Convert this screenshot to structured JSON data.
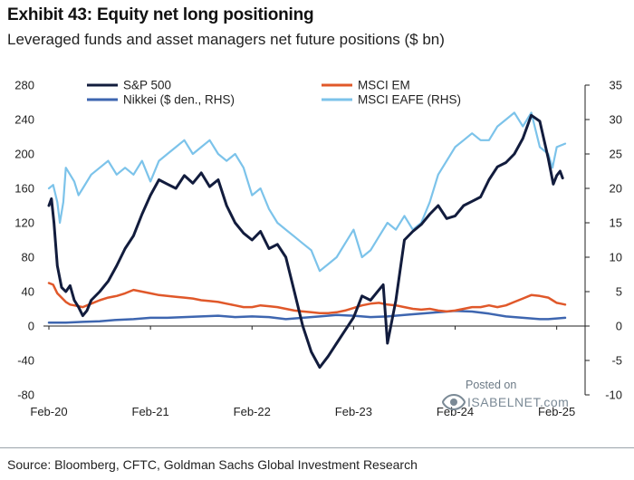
{
  "title": "Exhibit 43: Equity net long positioning",
  "subtitle": "Leveraged funds and asset managers net future positions ($ bn)",
  "source": "Source: Bloomberg, CFTC, Goldman Sachs Global Investment Research",
  "watermark": {
    "posted_on": "Posted on",
    "brand": "ISABELNET.com"
  },
  "chart_data": {
    "type": "line",
    "x_labels": [
      "Feb-20",
      "Feb-21",
      "Feb-22",
      "Feb-23",
      "Feb-24",
      "Feb-25"
    ],
    "x_range": [
      0,
      61
    ],
    "left_axis": {
      "ylim": [
        -80,
        280
      ],
      "ticks": [
        -80,
        -40,
        0,
        40,
        80,
        120,
        160,
        200,
        240,
        280
      ]
    },
    "right_axis": {
      "ylim": [
        -10,
        35
      ],
      "ticks": [
        -10,
        -5,
        0,
        5,
        10,
        15,
        20,
        25,
        30,
        35
      ]
    },
    "series": [
      {
        "name": "S&P 500",
        "axis": "left",
        "color": "#121c3d",
        "points": [
          [
            0,
            140
          ],
          [
            0.3,
            148
          ],
          [
            0.6,
            120
          ],
          [
            1,
            70
          ],
          [
            1.5,
            45
          ],
          [
            2,
            40
          ],
          [
            2.5,
            47
          ],
          [
            3,
            30
          ],
          [
            3.5,
            22
          ],
          [
            4,
            12
          ],
          [
            4.5,
            18
          ],
          [
            5,
            30
          ],
          [
            6,
            40
          ],
          [
            7,
            52
          ],
          [
            8,
            70
          ],
          [
            9,
            90
          ],
          [
            10,
            105
          ],
          [
            11,
            130
          ],
          [
            12,
            152
          ],
          [
            13,
            170
          ],
          [
            14,
            165
          ],
          [
            15,
            160
          ],
          [
            16,
            175
          ],
          [
            17,
            166
          ],
          [
            18,
            178
          ],
          [
            19,
            162
          ],
          [
            20,
            170
          ],
          [
            21,
            140
          ],
          [
            22,
            120
          ],
          [
            23,
            108
          ],
          [
            24,
            100
          ],
          [
            25,
            110
          ],
          [
            26,
            90
          ],
          [
            27,
            95
          ],
          [
            28,
            80
          ],
          [
            29,
            40
          ],
          [
            30,
            0
          ],
          [
            31,
            -30
          ],
          [
            32,
            -48
          ],
          [
            33,
            -35
          ],
          [
            34,
            -20
          ],
          [
            35,
            -5
          ],
          [
            36,
            10
          ],
          [
            37,
            35
          ],
          [
            38,
            30
          ],
          [
            39,
            42
          ],
          [
            39.5,
            48
          ],
          [
            40,
            -20
          ],
          [
            40.3,
            -5
          ],
          [
            41,
            30
          ],
          [
            42,
            100
          ],
          [
            43,
            110
          ],
          [
            44,
            118
          ],
          [
            45,
            130
          ],
          [
            46,
            140
          ],
          [
            47,
            125
          ],
          [
            48,
            128
          ],
          [
            49,
            140
          ],
          [
            50,
            145
          ],
          [
            51,
            150
          ],
          [
            52,
            170
          ],
          [
            53,
            185
          ],
          [
            54,
            190
          ],
          [
            55,
            200
          ],
          [
            56,
            218
          ],
          [
            57,
            245
          ],
          [
            58,
            238
          ],
          [
            59,
            195
          ],
          [
            59.6,
            165
          ],
          [
            60,
            175
          ],
          [
            60.4,
            180
          ],
          [
            60.7,
            172
          ]
        ]
      },
      {
        "name": "MSCI EM",
        "axis": "left",
        "color": "#e0582a",
        "points": [
          [
            0,
            50
          ],
          [
            0.5,
            48
          ],
          [
            1,
            38
          ],
          [
            1.5,
            33
          ],
          [
            2,
            28
          ],
          [
            2.5,
            25
          ],
          [
            3,
            24
          ],
          [
            4,
            22
          ],
          [
            5,
            26
          ],
          [
            6,
            30
          ],
          [
            7,
            33
          ],
          [
            8,
            35
          ],
          [
            9,
            38
          ],
          [
            10,
            42
          ],
          [
            11,
            40
          ],
          [
            12,
            38
          ],
          [
            13,
            36
          ],
          [
            14,
            35
          ],
          [
            15,
            34
          ],
          [
            16,
            33
          ],
          [
            17,
            32
          ],
          [
            18,
            30
          ],
          [
            19,
            29
          ],
          [
            20,
            28
          ],
          [
            21,
            26
          ],
          [
            22,
            24
          ],
          [
            23,
            22
          ],
          [
            24,
            22
          ],
          [
            25,
            24
          ],
          [
            26,
            23
          ],
          [
            27,
            22
          ],
          [
            28,
            20
          ],
          [
            29,
            18
          ],
          [
            30,
            17
          ],
          [
            31,
            16
          ],
          [
            32,
            15
          ],
          [
            33,
            15
          ],
          [
            34,
            16
          ],
          [
            35,
            18
          ],
          [
            36,
            21
          ],
          [
            37,
            24
          ],
          [
            38,
            26
          ],
          [
            39,
            27
          ],
          [
            40,
            25
          ],
          [
            41,
            24
          ],
          [
            42,
            22
          ],
          [
            43,
            20
          ],
          [
            44,
            19
          ],
          [
            45,
            20
          ],
          [
            46,
            18
          ],
          [
            47,
            17
          ],
          [
            48,
            18
          ],
          [
            49,
            20
          ],
          [
            50,
            22
          ],
          [
            51,
            22
          ],
          [
            52,
            24
          ],
          [
            53,
            22
          ],
          [
            54,
            24
          ],
          [
            55,
            28
          ],
          [
            56,
            32
          ],
          [
            57,
            36
          ],
          [
            58,
            35
          ],
          [
            59,
            33
          ],
          [
            59.5,
            30
          ],
          [
            60,
            27
          ],
          [
            60.5,
            26
          ],
          [
            61,
            25
          ]
        ]
      },
      {
        "name": "Nikkei ($ den., RHS)",
        "axis": "right",
        "color": "#3e66b0",
        "points": [
          [
            0,
            0.5
          ],
          [
            2,
            0.5
          ],
          [
            4,
            0.6
          ],
          [
            6,
            0.7
          ],
          [
            8,
            0.9
          ],
          [
            10,
            1.0
          ],
          [
            12,
            1.2
          ],
          [
            14,
            1.2
          ],
          [
            16,
            1.3
          ],
          [
            18,
            1.4
          ],
          [
            20,
            1.5
          ],
          [
            22,
            1.3
          ],
          [
            24,
            1.4
          ],
          [
            26,
            1.3
          ],
          [
            28,
            1.0
          ],
          [
            30,
            1.2
          ],
          [
            32,
            1.4
          ],
          [
            34,
            1.6
          ],
          [
            36,
            1.5
          ],
          [
            38,
            1.3
          ],
          [
            40,
            1.4
          ],
          [
            42,
            1.6
          ],
          [
            44,
            1.8
          ],
          [
            46,
            2.0
          ],
          [
            48,
            2.2
          ],
          [
            50,
            2.1
          ],
          [
            52,
            1.8
          ],
          [
            54,
            1.4
          ],
          [
            56,
            1.2
          ],
          [
            58,
            1.0
          ],
          [
            59,
            1.0
          ],
          [
            60,
            1.1
          ],
          [
            61,
            1.2
          ]
        ]
      },
      {
        "name": "MSCI EAFE (RHS)",
        "axis": "right",
        "color": "#7cc3ea",
        "points": [
          [
            0,
            20
          ],
          [
            0.5,
            20.5
          ],
          [
            1,
            18
          ],
          [
            1.3,
            15
          ],
          [
            1.7,
            18
          ],
          [
            2,
            23
          ],
          [
            2.5,
            22
          ],
          [
            3,
            21
          ],
          [
            3.5,
            19
          ],
          [
            4,
            20
          ],
          [
            5,
            22
          ],
          [
            6,
            23
          ],
          [
            7,
            24
          ],
          [
            8,
            22
          ],
          [
            9,
            23
          ],
          [
            10,
            22
          ],
          [
            11,
            24
          ],
          [
            12,
            21
          ],
          [
            13,
            24
          ],
          [
            14,
            25
          ],
          [
            15,
            26
          ],
          [
            16,
            27
          ],
          [
            17,
            25
          ],
          [
            18,
            26
          ],
          [
            19,
            27
          ],
          [
            20,
            25
          ],
          [
            21,
            24
          ],
          [
            22,
            25
          ],
          [
            23,
            23
          ],
          [
            24,
            19
          ],
          [
            25,
            20
          ],
          [
            26,
            17
          ],
          [
            27,
            15
          ],
          [
            28,
            14
          ],
          [
            29,
            13
          ],
          [
            30,
            12
          ],
          [
            31,
            11
          ],
          [
            32,
            8
          ],
          [
            33,
            9
          ],
          [
            34,
            10
          ],
          [
            35,
            12
          ],
          [
            36,
            14
          ],
          [
            37,
            10
          ],
          [
            38,
            11
          ],
          [
            39,
            13
          ],
          [
            40,
            15
          ],
          [
            41,
            14
          ],
          [
            42,
            16
          ],
          [
            43,
            14
          ],
          [
            44,
            15
          ],
          [
            45,
            18
          ],
          [
            46,
            22
          ],
          [
            47,
            24
          ],
          [
            48,
            26
          ],
          [
            49,
            27
          ],
          [
            50,
            28
          ],
          [
            51,
            27
          ],
          [
            52,
            27
          ],
          [
            53,
            29
          ],
          [
            54,
            30
          ],
          [
            55,
            31
          ],
          [
            56,
            29
          ],
          [
            57,
            31
          ],
          [
            58,
            26
          ],
          [
            59,
            25
          ],
          [
            59.5,
            23
          ],
          [
            60,
            26
          ],
          [
            61,
            26.5
          ]
        ]
      }
    ]
  }
}
